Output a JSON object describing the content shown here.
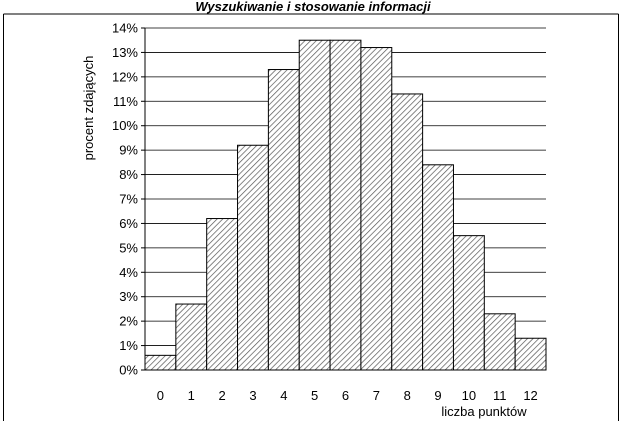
{
  "chart_data": {
    "type": "bar",
    "title": "Wyszukiwanie i stosowanie informacji",
    "xlabel": "liczba punktów",
    "ylabel": "procent zdających",
    "categories": [
      "0",
      "1",
      "2",
      "3",
      "4",
      "5",
      "6",
      "7",
      "8",
      "9",
      "10",
      "11",
      "12"
    ],
    "values": [
      0.6,
      2.7,
      6.2,
      9.2,
      12.3,
      13.5,
      13.5,
      13.2,
      11.3,
      8.4,
      5.5,
      2.3,
      1.3
    ],
    "ylim": [
      0,
      14
    ],
    "yticks": [
      "0%",
      "1%",
      "2%",
      "3%",
      "4%",
      "5%",
      "6%",
      "7%",
      "8%",
      "9%",
      "10%",
      "11%",
      "12%",
      "13%",
      "14%"
    ],
    "grid": true,
    "bar_fill": "diagonal-hatch",
    "colors": {
      "bar_stroke": "#000000",
      "hatch": "#555555",
      "grid": "#000000"
    }
  }
}
